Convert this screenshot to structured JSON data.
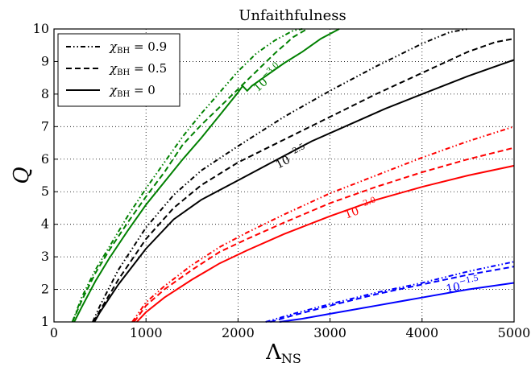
{
  "chart_data": {
    "type": "line",
    "title": "Unfaithfulness",
    "xlabel": "Λ",
    "xlabel_sub": "NS",
    "ylabel": "Q",
    "xlim": [
      0,
      5000
    ],
    "ylim": [
      1,
      10
    ],
    "xticks": [
      0,
      1000,
      2000,
      3000,
      4000,
      5000
    ],
    "yticks": [
      1,
      2,
      3,
      4,
      5,
      6,
      7,
      8,
      9,
      10
    ],
    "grid": true,
    "legend_position": "top-left",
    "legend": [
      {
        "symbol": "χ",
        "sub": "BH",
        "value": " = 0.9",
        "linestyle": "dashdotdot"
      },
      {
        "symbol": "χ",
        "sub": "BH",
        "value": " = 0.5",
        "linestyle": "dashed"
      },
      {
        "symbol": "χ",
        "sub": "BH",
        "value": " = 0",
        "linestyle": "solid"
      }
    ],
    "contour_levels": [
      {
        "base": "10",
        "exp": "−3.0",
        "color": "#008000",
        "label_at": [
          2350,
          8.4
        ],
        "label_angle": -42
      },
      {
        "base": "10",
        "exp": "−2.5",
        "color": "#000000",
        "label_at": [
          2600,
          5.95
        ],
        "label_angle": -28
      },
      {
        "base": "10",
        "exp": "−2.0",
        "color": "#ff0000",
        "label_at": [
          3350,
          4.35
        ],
        "label_angle": -20
      },
      {
        "base": "10",
        "exp": "−1.5",
        "color": "#0000ff",
        "label_at": [
          4450,
          2.0
        ],
        "label_angle": -12
      }
    ],
    "series": [
      {
        "level": "10^-3.0",
        "chi_bh": 0.9,
        "linestyle": "dashdotdot",
        "color": "#008000",
        "x": [
          200,
          300,
          450,
          600,
          800,
          1000,
          1200,
          1400,
          1600,
          1800,
          2000,
          2200,
          2400,
          2600,
          2700
        ],
        "y": [
          1.0,
          1.75,
          2.6,
          3.3,
          4.25,
          5.1,
          5.9,
          6.7,
          7.4,
          8.05,
          8.7,
          9.25,
          9.65,
          9.95,
          10.0
        ]
      },
      {
        "level": "10^-3.0",
        "chi_bh": 0.5,
        "linestyle": "dashed",
        "color": "#008000",
        "x": [
          200,
          300,
          450,
          600,
          800,
          1000,
          1200,
          1400,
          1600,
          1800,
          2000,
          2200,
          2400,
          2600,
          2750
        ],
        "y": [
          1.0,
          1.65,
          2.5,
          3.2,
          4.05,
          4.85,
          5.6,
          6.45,
          7.05,
          7.6,
          8.15,
          8.7,
          9.25,
          9.75,
          10.0
        ]
      },
      {
        "level": "10^-3.0",
        "chi_bh": 0.0,
        "linestyle": "solid",
        "color": "#008000",
        "x": [
          220,
          300,
          450,
          600,
          800,
          1000,
          1200,
          1400,
          1600,
          1800,
          2000,
          2050,
          2100,
          2150,
          2300,
          2500,
          2700,
          2900,
          3100
        ],
        "y": [
          1.0,
          1.45,
          2.25,
          2.95,
          3.8,
          4.6,
          5.3,
          6.0,
          6.65,
          7.35,
          8.05,
          8.25,
          8.1,
          8.25,
          8.55,
          8.95,
          9.3,
          9.7,
          10.0
        ]
      },
      {
        "level": "10^-2.5",
        "chi_bh": 0.9,
        "linestyle": "dashdotdot",
        "color": "#000000",
        "x": [
          420,
          500,
          700,
          1000,
          1300,
          1600,
          2000,
          2500,
          3000,
          3500,
          4000,
          4300,
          4500
        ],
        "y": [
          1.0,
          1.5,
          2.6,
          3.9,
          4.9,
          5.65,
          6.4,
          7.3,
          8.1,
          8.85,
          9.55,
          9.9,
          10.0
        ]
      },
      {
        "level": "10^-2.5",
        "chi_bh": 0.5,
        "linestyle": "dashed",
        "color": "#000000",
        "x": [
          430,
          500,
          700,
          1000,
          1300,
          1600,
          2000,
          2500,
          3000,
          3500,
          4000,
          4500,
          4800,
          5000
        ],
        "y": [
          1.0,
          1.35,
          2.3,
          3.55,
          4.5,
          5.2,
          5.9,
          6.6,
          7.3,
          8.0,
          8.65,
          9.3,
          9.6,
          9.7
        ]
      },
      {
        "level": "10^-2.5",
        "chi_bh": 0.0,
        "linestyle": "solid",
        "color": "#000000",
        "x": [
          440,
          500,
          700,
          1000,
          1300,
          1600,
          2000,
          2400,
          2800,
          3200,
          3600,
          4000,
          4500,
          5000
        ],
        "y": [
          1.0,
          1.3,
          2.15,
          3.25,
          4.15,
          4.75,
          5.35,
          5.95,
          6.55,
          7.05,
          7.55,
          8.0,
          8.55,
          9.05
        ]
      },
      {
        "level": "10^-2.0",
        "chi_bh": 0.9,
        "linestyle": "dashdotdot",
        "color": "#ff0000",
        "x": [
          850,
          1000,
          1200,
          1500,
          1800,
          2100,
          2500,
          3000,
          3500,
          4000,
          4500,
          5000
        ],
        "y": [
          1.0,
          1.6,
          2.1,
          2.75,
          3.3,
          3.75,
          4.3,
          4.95,
          5.5,
          6.05,
          6.55,
          7.0
        ]
      },
      {
        "level": "10^-2.0",
        "chi_bh": 0.5,
        "linestyle": "dashed",
        "color": "#ff0000",
        "x": [
          870,
          1000,
          1200,
          1500,
          1800,
          2100,
          2500,
          3000,
          3500,
          4000,
          4500,
          5000
        ],
        "y": [
          1.0,
          1.5,
          2.0,
          2.6,
          3.15,
          3.55,
          4.05,
          4.65,
          5.15,
          5.6,
          6.0,
          6.35
        ]
      },
      {
        "level": "10^-2.0",
        "chi_bh": 0.0,
        "linestyle": "solid",
        "color": "#ff0000",
        "x": [
          900,
          1000,
          1200,
          1500,
          1800,
          2100,
          2500,
          3000,
          3500,
          4000,
          4500,
          5000
        ],
        "y": [
          1.0,
          1.3,
          1.75,
          2.3,
          2.8,
          3.2,
          3.7,
          4.25,
          4.75,
          5.15,
          5.5,
          5.8
        ]
      },
      {
        "level": "10^-1.5",
        "chi_bh": 0.9,
        "linestyle": "dashdotdot",
        "color": "#0000ff",
        "x": [
          2300,
          2600,
          3000,
          3500,
          4000,
          4500,
          5000
        ],
        "y": [
          1.0,
          1.25,
          1.55,
          1.9,
          2.2,
          2.55,
          2.85
        ]
      },
      {
        "level": "10^-1.5",
        "chi_bh": 0.5,
        "linestyle": "dashed",
        "color": "#0000ff",
        "x": [
          2350,
          2600,
          3000,
          3500,
          4000,
          4500,
          5000
        ],
        "y": [
          1.0,
          1.2,
          1.5,
          1.85,
          2.15,
          2.45,
          2.7
        ]
      },
      {
        "level": "10^-1.5",
        "chi_bh": 0.0,
        "linestyle": "solid",
        "color": "#0000ff",
        "x": [
          2450,
          2700,
          3000,
          3500,
          4000,
          4500,
          5000
        ],
        "y": [
          1.0,
          1.1,
          1.25,
          1.5,
          1.75,
          2.0,
          2.2
        ]
      }
    ]
  }
}
